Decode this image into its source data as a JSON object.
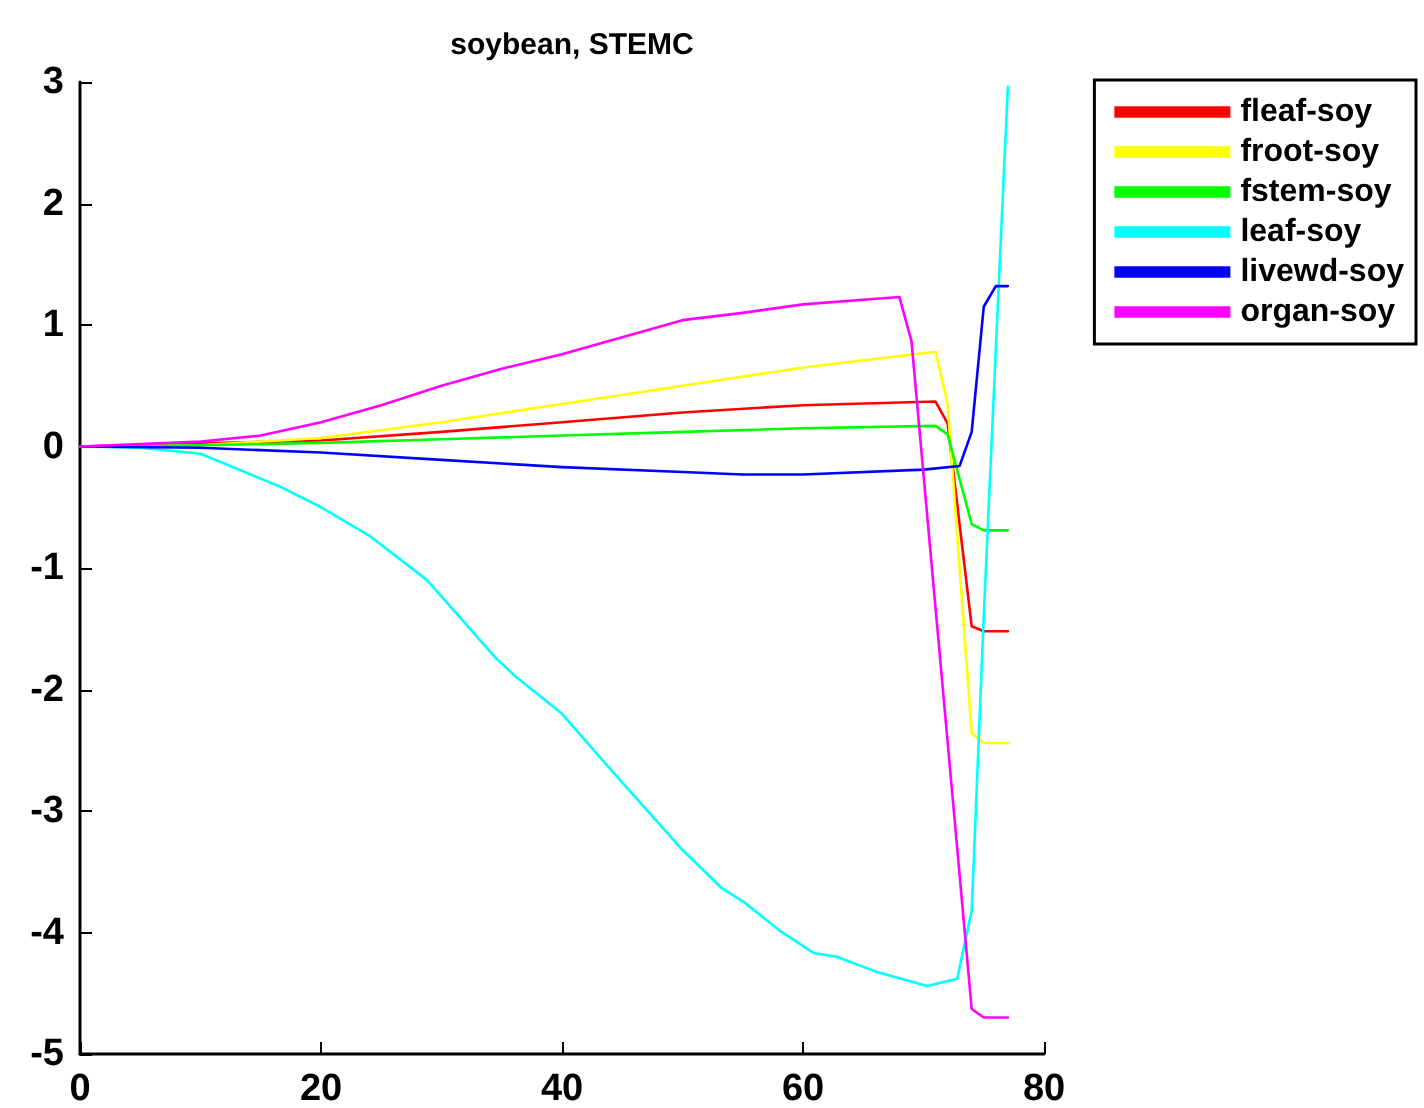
{
  "chart_data": {
    "type": "line",
    "title": "soybean, STEMC",
    "xlim": [
      0,
      80
    ],
    "xticks": [
      0,
      20,
      40,
      60,
      80
    ],
    "ylim": [
      -5,
      3
    ],
    "yticks": [
      -5,
      -4,
      -3,
      -2,
      -1,
      0,
      1,
      2,
      3
    ],
    "grid": false,
    "legend": "top right",
    "marker": "none",
    "line_style": "solid",
    "series": [
      {
        "name": "fleaf-soy",
        "color": "#ff0000",
        "x": [
          0,
          20,
          30,
          40,
          50,
          60,
          71,
          72,
          74,
          75,
          77
        ],
        "values": [
          0,
          0.05,
          0.12,
          0.2,
          0.28,
          0.34,
          0.37,
          0.19,
          -1.48,
          -1.52,
          -1.52
        ]
      },
      {
        "name": "froot-soy",
        "color": "#ffff00",
        "x": [
          0,
          10,
          20,
          30,
          40,
          50,
          60,
          71,
          72,
          74,
          75,
          77
        ],
        "values": [
          0,
          0.01,
          0.07,
          0.2,
          0.35,
          0.5,
          0.65,
          0.78,
          0.35,
          -2.36,
          -2.44,
          -2.44
        ]
      },
      {
        "name": "fstem-soy",
        "color": "#00ff00",
        "x": [
          0,
          10,
          20,
          30,
          40,
          50,
          60,
          71,
          72,
          74,
          75,
          77
        ],
        "values": [
          0,
          0.01,
          0.03,
          0.06,
          0.09,
          0.12,
          0.15,
          0.17,
          0.1,
          -0.64,
          -0.69,
          -0.69
        ]
      },
      {
        "name": "leaf-soy",
        "color": "#00ffff",
        "x": [
          0,
          5,
          10,
          16.6,
          20,
          24.1,
          28.8,
          34.4,
          36,
          40,
          43.7,
          49.8,
          53.2,
          55.1,
          58,
          60.9,
          62.8,
          66,
          70.3,
          72.8,
          74,
          75,
          76,
          77
        ],
        "values": [
          0,
          -0.01,
          -0.06,
          -0.33,
          -0.5,
          -0.74,
          -1.1,
          -1.73,
          -1.88,
          -2.2,
          -2.62,
          -3.3,
          -3.63,
          -3.75,
          -3.98,
          -4.17,
          -4.2,
          -4.32,
          -4.44,
          -4.38,
          -3.82,
          -1.4,
          0.8,
          2.96
        ]
      },
      {
        "name": "livewd-soy",
        "color": "#0000ff",
        "x": [
          0,
          10,
          20,
          30,
          40,
          50,
          55,
          60,
          70,
          73,
          74,
          75,
          76,
          77
        ],
        "values": [
          0,
          -0.01,
          -0.05,
          -0.11,
          -0.17,
          -0.21,
          -0.23,
          -0.23,
          -0.19,
          -0.16,
          0.12,
          1.15,
          1.32,
          1.32
        ]
      },
      {
        "name": "organ-soy",
        "color": "#ff00ff",
        "x": [
          0,
          10,
          15,
          20,
          25,
          30,
          35,
          40,
          45,
          50,
          55,
          60,
          68,
          69,
          74,
          75,
          77
        ],
        "values": [
          0,
          0.04,
          0.09,
          0.2,
          0.34,
          0.5,
          0.64,
          0.76,
          0.9,
          1.04,
          1.1,
          1.17,
          1.23,
          0.87,
          -4.63,
          -4.7,
          -4.7
        ]
      }
    ]
  }
}
